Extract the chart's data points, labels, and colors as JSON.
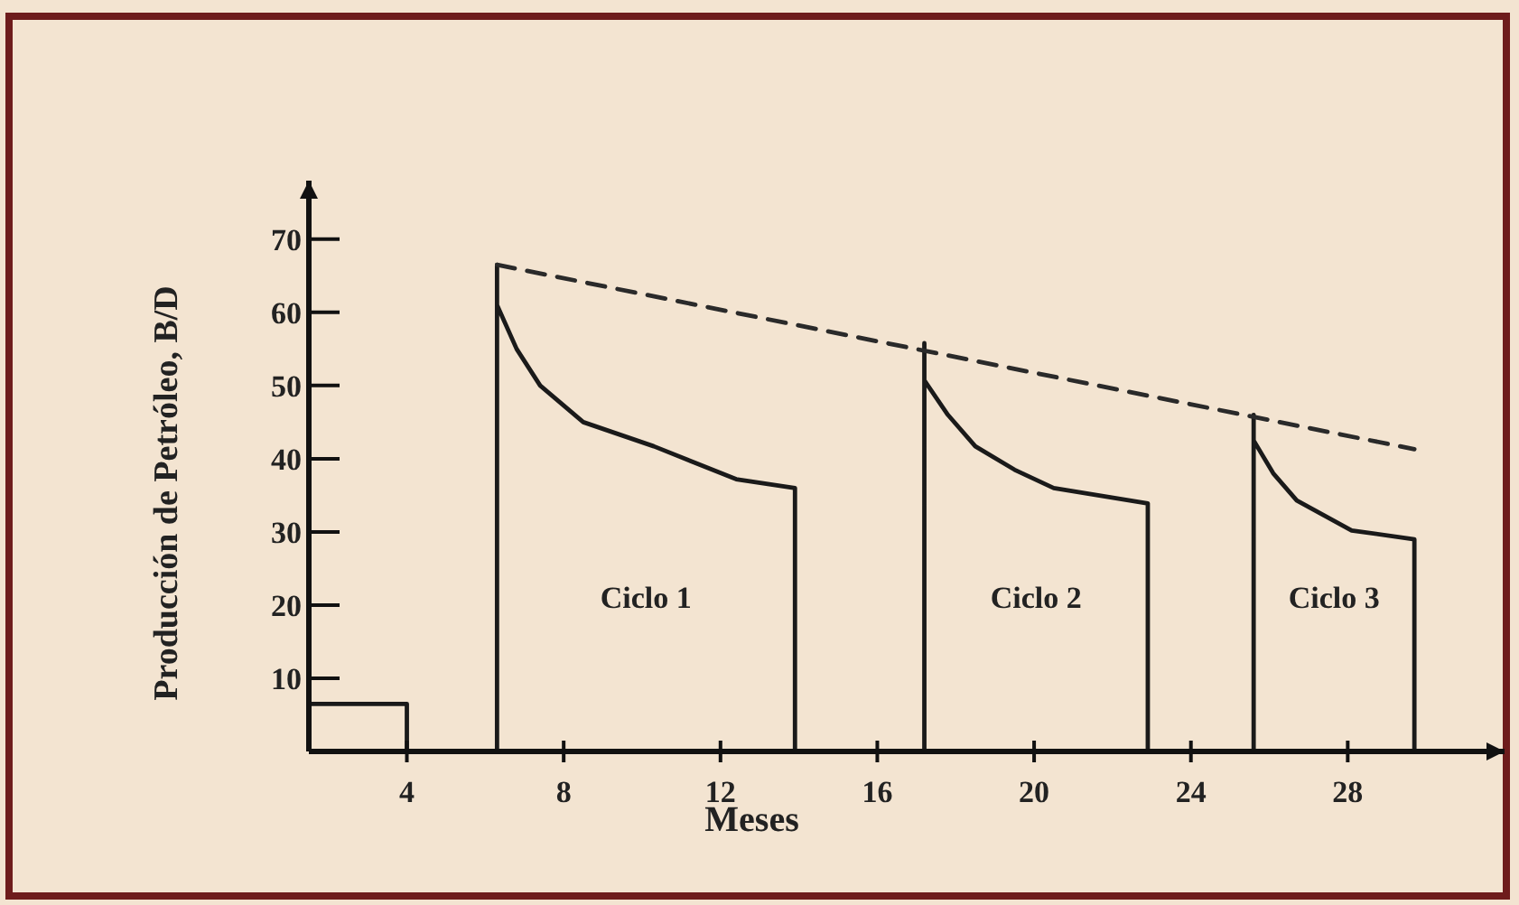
{
  "chart_data": {
    "type": "line",
    "xlabel": "Meses",
    "ylabel": "Producción de Petróleo, B/D",
    "xlim": [
      1.5,
      32
    ],
    "ylim": [
      0,
      78
    ],
    "xticks": [
      4,
      8,
      12,
      16,
      20,
      24,
      28
    ],
    "yticks": [
      10,
      20,
      30,
      40,
      50,
      60,
      70
    ],
    "grid": false,
    "marker": "none",
    "series": [
      {
        "color": "#1a1a1a",
        "line_style": "solid",
        "x": [
          1.5,
          4,
          4,
          6.3,
          6.3,
          6.3,
          6.8,
          7.4,
          8.5,
          10.3,
          12.4,
          13.9,
          13.9,
          17.2,
          17.2,
          17.2,
          17.8,
          18.5,
          19.5,
          20.5,
          22.9,
          22.9,
          25.6,
          25.6,
          25.6,
          26.1,
          26.7,
          28.1,
          29.7,
          29.7
        ],
        "values": [
          6.5,
          6.5,
          0,
          0,
          66.5,
          61,
          55,
          50,
          45,
          41.7,
          37.2,
          36,
          0,
          0,
          55.8,
          50.7,
          46,
          41.7,
          38.5,
          36,
          33.9,
          0,
          0,
          46,
          42.5,
          38,
          34.3,
          30.2,
          29,
          0
        ]
      },
      {
        "color": "#2a2a2a",
        "line_style": "dashed",
        "x": [
          6.3,
          29.7
        ],
        "values": [
          66.5,
          41.3
        ]
      }
    ],
    "annotations": [
      "Ciclo 1",
      "Ciclo 2",
      "Ciclo 3"
    ]
  }
}
